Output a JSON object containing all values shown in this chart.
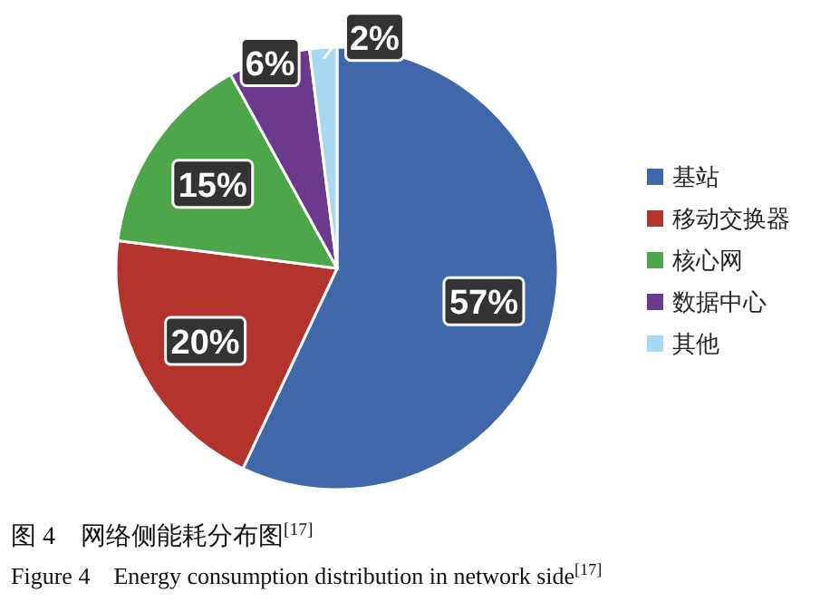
{
  "chart_data": {
    "type": "pie",
    "categories": [
      "基站",
      "移动交换器",
      "核心网",
      "数据中心",
      "其他"
    ],
    "values": [
      57,
      20,
      15,
      6,
      2
    ],
    "value_labels": [
      "57%",
      "20%",
      "15%",
      "6%",
      "2%"
    ],
    "colors": [
      "#4067a9",
      "#b3332d",
      "#4ea64b",
      "#6c3a8c",
      "#a8d9f0"
    ],
    "legend": "right",
    "annotations": [
      "图 4　网络侧能耗分布图$^{[17]}$",
      "Figure 4　Energy consumption distribution in network side$^{[17]}$"
    ]
  }
}
